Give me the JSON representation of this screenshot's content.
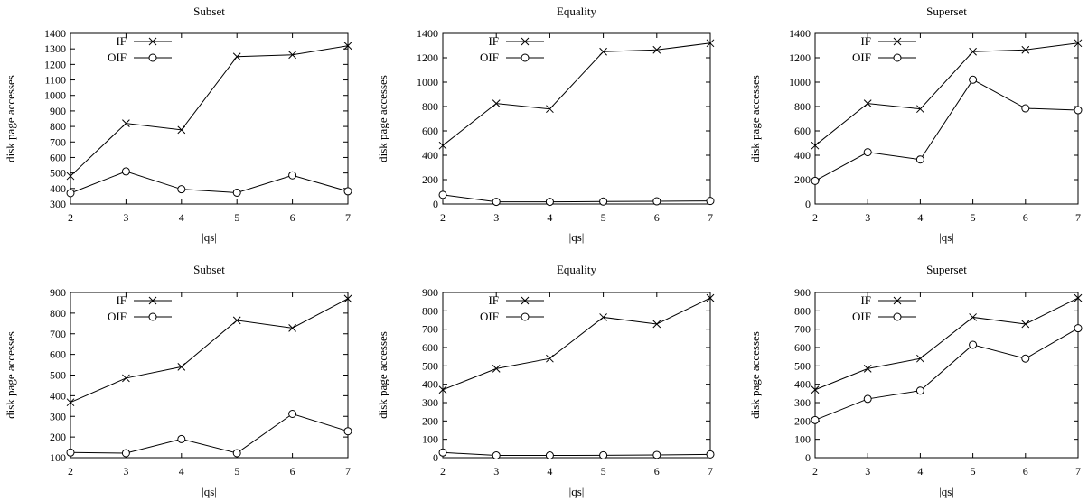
{
  "chart_data": [
    {
      "type": "line",
      "title": "Subset",
      "xlabel": "|qs|",
      "ylabel": "disk page accesses",
      "x": [
        2,
        3,
        4,
        5,
        6,
        7
      ],
      "xlim": [
        2,
        7
      ],
      "ylim": [
        300,
        1400
      ],
      "yticks": [
        300,
        400,
        500,
        600,
        700,
        800,
        900,
        1000,
        1100,
        1200,
        1300,
        1400
      ],
      "legend_position": "top-left",
      "series": [
        {
          "name": "IF",
          "marker": "x",
          "values": [
            480,
            820,
            778,
            1250,
            1262,
            1320
          ]
        },
        {
          "name": "OIF",
          "marker": "o",
          "values": [
            370,
            510,
            395,
            373,
            485,
            382
          ]
        }
      ]
    },
    {
      "type": "line",
      "title": "Equality",
      "xlabel": "|qs|",
      "ylabel": "disk page accesses",
      "x": [
        2,
        3,
        4,
        5,
        6,
        7
      ],
      "xlim": [
        2,
        7
      ],
      "ylim": [
        0,
        1400
      ],
      "yticks": [
        0,
        200,
        400,
        600,
        800,
        1000,
        1200,
        1400
      ],
      "legend_position": "top-left",
      "series": [
        {
          "name": "IF",
          "marker": "x",
          "values": [
            480,
            825,
            780,
            1250,
            1265,
            1320
          ]
        },
        {
          "name": "OIF",
          "marker": "o",
          "values": [
            75,
            18,
            18,
            20,
            22,
            25
          ]
        }
      ]
    },
    {
      "type": "line",
      "title": "Superset",
      "xlabel": "|qs|",
      "ylabel": "disk page accesses",
      "x": [
        2,
        3,
        4,
        5,
        6,
        7
      ],
      "xlim": [
        2,
        7
      ],
      "ylim": [
        0,
        1400
      ],
      "yticks": [
        0,
        200,
        400,
        600,
        800,
        1000,
        1200,
        1400
      ],
      "legend_position": "top-left",
      "series": [
        {
          "name": "IF",
          "marker": "x",
          "values": [
            480,
            825,
            780,
            1250,
            1265,
            1320
          ]
        },
        {
          "name": "OIF",
          "marker": "o",
          "values": [
            190,
            425,
            365,
            1020,
            785,
            770
          ]
        }
      ]
    },
    {
      "type": "line",
      "title": "Subset",
      "xlabel": "|qs|",
      "ylabel": "disk page accesses",
      "x": [
        2,
        3,
        4,
        5,
        6,
        7
      ],
      "xlim": [
        2,
        7
      ],
      "ylim": [
        100,
        900
      ],
      "yticks": [
        100,
        200,
        300,
        400,
        500,
        600,
        700,
        800,
        900
      ],
      "legend_position": "top-left",
      "series": [
        {
          "name": "IF",
          "marker": "x",
          "values": [
            368,
            485,
            540,
            765,
            728,
            870
          ]
        },
        {
          "name": "OIF",
          "marker": "o",
          "values": [
            125,
            122,
            190,
            122,
            312,
            228
          ]
        }
      ]
    },
    {
      "type": "line",
      "title": "Equality",
      "xlabel": "|qs|",
      "ylabel": "disk page accesses",
      "x": [
        2,
        3,
        4,
        5,
        6,
        7
      ],
      "xlim": [
        2,
        7
      ],
      "ylim": [
        0,
        900
      ],
      "yticks": [
        0,
        100,
        200,
        300,
        400,
        500,
        600,
        700,
        800,
        900
      ],
      "legend_position": "top-left",
      "series": [
        {
          "name": "IF",
          "marker": "x",
          "values": [
            370,
            485,
            540,
            765,
            728,
            870
          ]
        },
        {
          "name": "OIF",
          "marker": "o",
          "values": [
            28,
            12,
            12,
            13,
            15,
            18
          ]
        }
      ]
    },
    {
      "type": "line",
      "title": "Superset",
      "xlabel": "|qs|",
      "ylabel": "disk page accesses",
      "x": [
        2,
        3,
        4,
        5,
        6,
        7
      ],
      "xlim": [
        2,
        7
      ],
      "ylim": [
        0,
        900
      ],
      "yticks": [
        0,
        100,
        200,
        300,
        400,
        500,
        600,
        700,
        800,
        900
      ],
      "legend_position": "top-left",
      "series": [
        {
          "name": "IF",
          "marker": "x",
          "values": [
            370,
            485,
            540,
            765,
            728,
            870
          ]
        },
        {
          "name": "OIF",
          "marker": "o",
          "values": [
            205,
            320,
            365,
            615,
            540,
            705
          ]
        }
      ]
    }
  ]
}
